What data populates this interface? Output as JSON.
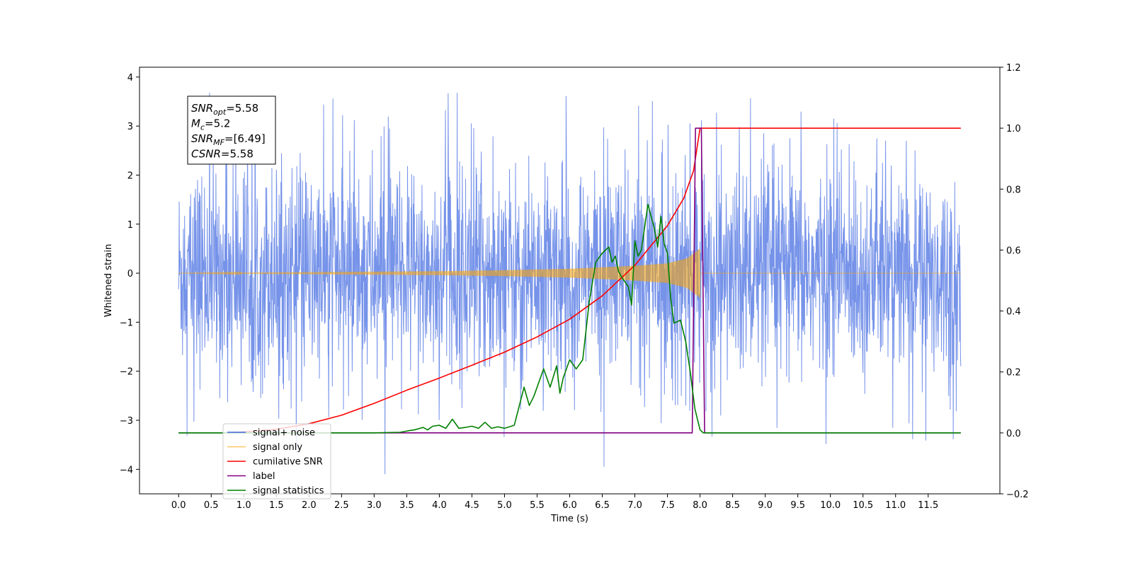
{
  "chart_data": {
    "type": "line",
    "xlabel": "Time (s)",
    "ylabel_left": "Whitened strain",
    "ylabel_right": "",
    "xlim": [
      -0.6,
      12.6
    ],
    "ylim_left": [
      -4.5,
      4.2
    ],
    "ylim_right": [
      -0.2,
      1.2
    ],
    "x_ticks": [
      0.0,
      0.5,
      1.0,
      1.5,
      2.0,
      2.5,
      3.0,
      3.5,
      4.0,
      4.5,
      5.0,
      5.5,
      6.0,
      6.5,
      7.0,
      7.5,
      8.0,
      8.5,
      9.0,
      9.5,
      10.0,
      10.5,
      11.0,
      11.5
    ],
    "x_tick_labels": [
      "0.0",
      "0.5",
      "1.0",
      "1.5",
      "2.0",
      "2.5",
      "3.0",
      "3.5",
      "4.0",
      "4.5",
      "5.0",
      "5.5",
      "6.0",
      "6.5",
      "7.0",
      "7.5",
      "8.0",
      "8.5",
      "9.0",
      "9.5",
      "10.0",
      "10.5",
      "11.0",
      "11.5"
    ],
    "y_left_ticks": [
      -4,
      -3,
      -2,
      -1,
      0,
      1,
      2,
      3,
      4
    ],
    "y_left_tick_labels": [
      "−4",
      "−3",
      "−2",
      "−1",
      "0",
      "1",
      "2",
      "3",
      "4"
    ],
    "y_right_ticks": [
      -0.2,
      0.0,
      0.2,
      0.4,
      0.6,
      0.8,
      1.0,
      1.2
    ],
    "y_right_tick_labels": [
      "−0.2",
      "0.0",
      "0.2",
      "0.4",
      "0.6",
      "0.8",
      "1.0",
      "1.2"
    ],
    "grid": false,
    "legend_position": "lower-left",
    "annotation": {
      "lines": [
        {
          "base": "SNR",
          "sub": "opt",
          "value": "=5.58"
        },
        {
          "base": "M",
          "sub": "c",
          "value": "=5.2"
        },
        {
          "base": "SNR",
          "sub": "MF",
          "value": "=[6.49]"
        },
        {
          "base": "CSNR",
          "sub": "",
          "value": "=5.58"
        }
      ]
    },
    "series": [
      {
        "name": "signal+ noise",
        "axis": "left",
        "color": "#4169e1",
        "style": "noise",
        "x_range": [
          0.0,
          12.0
        ],
        "envelope_upper": 2.6,
        "envelope_lower": -2.6,
        "spike_max": 3.8,
        "spike_min": -4.1
      },
      {
        "name": "signal only",
        "axis": "left",
        "color": "#ffa500",
        "style": "chirp",
        "x_range": [
          0.0,
          12.0
        ],
        "merger_time": 8.0,
        "amplitude_points": [
          [
            0.0,
            0.0
          ],
          [
            2.0,
            0.02
          ],
          [
            4.0,
            0.04
          ],
          [
            5.0,
            0.06
          ],
          [
            6.0,
            0.09
          ],
          [
            7.0,
            0.15
          ],
          [
            7.5,
            0.2
          ],
          [
            7.8,
            0.3
          ],
          [
            8.0,
            0.5
          ]
        ]
      },
      {
        "name": "cumilative SNR",
        "axis": "right",
        "color": "#ff0000",
        "style": "line",
        "x": [
          0.7,
          1.0,
          1.5,
          2.0,
          2.5,
          3.0,
          3.5,
          4.0,
          4.5,
          5.0,
          5.5,
          6.0,
          6.5,
          7.0,
          7.5,
          7.75,
          7.9,
          8.0,
          12.0
        ],
        "y": [
          0.0,
          0.003,
          0.012,
          0.03,
          0.058,
          0.097,
          0.14,
          0.18,
          0.222,
          0.265,
          0.315,
          0.373,
          0.45,
          0.55,
          0.68,
          0.77,
          0.86,
          1.0,
          1.0
        ]
      },
      {
        "name": "label",
        "axis": "right",
        "color": "#800080",
        "style": "line",
        "x": [
          0.0,
          7.88,
          7.93,
          8.02,
          8.07,
          12.0
        ],
        "y": [
          0.0,
          0.0,
          1.0,
          1.0,
          0.0,
          0.0
        ]
      },
      {
        "name": "signal statistics",
        "axis": "right",
        "color": "#008000",
        "style": "line",
        "x": [
          0.0,
          3.0,
          3.4,
          3.55,
          3.62,
          3.75,
          3.82,
          3.9,
          4.0,
          4.1,
          4.2,
          4.3,
          4.4,
          4.5,
          4.6,
          4.7,
          4.8,
          4.9,
          5.0,
          5.15,
          5.3,
          5.38,
          5.45,
          5.5,
          5.6,
          5.7,
          5.8,
          5.85,
          5.9,
          6.0,
          6.1,
          6.2,
          6.3,
          6.4,
          6.5,
          6.6,
          6.65,
          6.7,
          6.75,
          6.8,
          6.9,
          6.95,
          7.0,
          7.05,
          7.1,
          7.2,
          7.3,
          7.35,
          7.4,
          7.45,
          7.5,
          7.55,
          7.6,
          7.7,
          7.78,
          7.85,
          7.92,
          8.0,
          8.05,
          8.5,
          12.0
        ],
        "y": [
          0.0,
          0.0,
          0.002,
          0.008,
          0.01,
          0.018,
          0.01,
          0.022,
          0.025,
          0.015,
          0.045,
          0.015,
          0.018,
          0.022,
          0.015,
          0.035,
          0.015,
          0.02,
          0.015,
          0.025,
          0.15,
          0.09,
          0.12,
          0.15,
          0.21,
          0.15,
          0.22,
          0.13,
          0.18,
          0.24,
          0.21,
          0.24,
          0.43,
          0.56,
          0.59,
          0.61,
          0.56,
          0.58,
          0.53,
          0.51,
          0.48,
          0.42,
          0.63,
          0.58,
          0.6,
          0.75,
          0.67,
          0.61,
          0.71,
          0.62,
          0.59,
          0.44,
          0.36,
          0.37,
          0.3,
          0.2,
          0.08,
          0.01,
          0.0,
          0.0,
          0.0
        ]
      }
    ],
    "legend_entries": [
      {
        "label": "signal+ noise",
        "color": "#4169e1"
      },
      {
        "label": "signal only",
        "color": "#ffa500"
      },
      {
        "label": "cumilative SNR",
        "color": "#ff0000"
      },
      {
        "label": "label",
        "color": "#800080"
      },
      {
        "label": "signal statistics",
        "color": "#008000"
      }
    ]
  }
}
